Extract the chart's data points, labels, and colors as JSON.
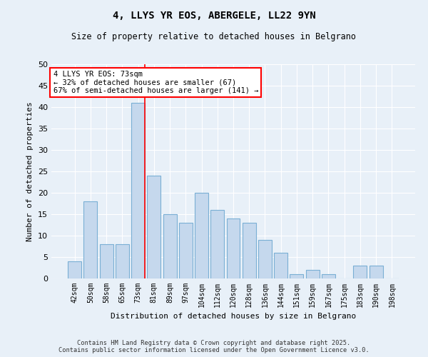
{
  "title": "4, LLYS YR EOS, ABERGELE, LL22 9YN",
  "subtitle": "Size of property relative to detached houses in Belgrano",
  "xlabel": "Distribution of detached houses by size in Belgrano",
  "ylabel": "Number of detached properties",
  "categories": [
    "42sqm",
    "50sqm",
    "58sqm",
    "65sqm",
    "73sqm",
    "81sqm",
    "89sqm",
    "97sqm",
    "104sqm",
    "112sqm",
    "120sqm",
    "128sqm",
    "136sqm",
    "144sqm",
    "151sqm",
    "159sqm",
    "167sqm",
    "175sqm",
    "183sqm",
    "190sqm",
    "198sqm"
  ],
  "values": [
    4,
    18,
    8,
    8,
    41,
    24,
    15,
    13,
    20,
    16,
    14,
    13,
    9,
    6,
    1,
    2,
    1,
    0,
    3,
    3,
    0
  ],
  "bar_color": "#c5d8ed",
  "bar_edgecolor": "#7aafd4",
  "background_color": "#e8f0f8",
  "grid_color": "#ffffff",
  "ylim": [
    0,
    50
  ],
  "yticks": [
    0,
    5,
    10,
    15,
    20,
    25,
    30,
    35,
    40,
    45,
    50
  ],
  "redline_index": 4,
  "annotation_title": "4 LLYS YR EOS: 73sqm",
  "annotation_line1": "← 32% of detached houses are smaller (67)",
  "annotation_line2": "67% of semi-detached houses are larger (141) →",
  "footnote1": "Contains HM Land Registry data © Crown copyright and database right 2025.",
  "footnote2": "Contains public sector information licensed under the Open Government Licence v3.0."
}
